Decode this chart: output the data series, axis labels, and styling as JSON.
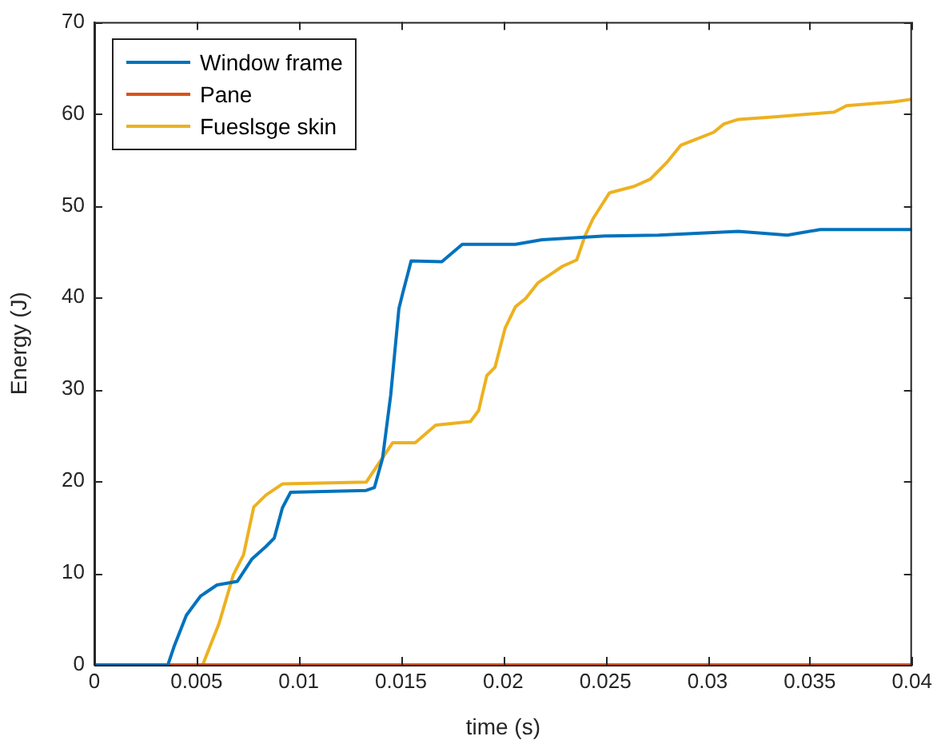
{
  "chart_data": {
    "type": "line",
    "xlabel": "time (s)",
    "ylabel": "Energy (J)",
    "xlim": [
      0,
      0.04
    ],
    "xticks": [
      0,
      0.005,
      0.01,
      0.015,
      0.02,
      0.025,
      0.03,
      0.035,
      0.04
    ],
    "ylim": [
      0,
      70
    ],
    "yticks": [
      0,
      10,
      20,
      30,
      40,
      50,
      60,
      70
    ],
    "grid": false,
    "legend": "top left",
    "marker": "none",
    "line_style": "solid",
    "series": [
      {
        "name": "Window frame",
        "color": "#0072bd",
        "x": [
          0,
          0.0036,
          0.0039,
          0.0045,
          0.0052,
          0.006,
          0.007,
          0.0077,
          0.0084,
          0.0088,
          0.0092,
          0.0096,
          0.0133,
          0.0137,
          0.0141,
          0.0145,
          0.0149,
          0.0151,
          0.0155,
          0.017,
          0.018,
          0.0206,
          0.0219,
          0.025,
          0.0276,
          0.0315,
          0.0339,
          0.0355,
          0.04
        ],
        "values": [
          0,
          0,
          2,
          5.4,
          7.5,
          8.7,
          9.1,
          11.5,
          12.9,
          13.8,
          17.1,
          18.8,
          19,
          19.3,
          22.5,
          29.4,
          38.8,
          40.6,
          44,
          43.9,
          45.8,
          45.8,
          46.3,
          46.7,
          46.8,
          47.2,
          46.8,
          47.4,
          47.4
        ]
      },
      {
        "name": "Pane",
        "color": "#d95319",
        "x": [
          0,
          0.04
        ],
        "values": [
          0,
          0
        ]
      },
      {
        "name": "Fueslsge skin",
        "color": "#edb120",
        "x": [
          0,
          0.0053,
          0.0061,
          0.0068,
          0.0073,
          0.0078,
          0.0084,
          0.0092,
          0.0133,
          0.0139,
          0.0146,
          0.0157,
          0.0167,
          0.0184,
          0.0188,
          0.0192,
          0.0196,
          0.0201,
          0.0206,
          0.0211,
          0.0217,
          0.0223,
          0.0229,
          0.0236,
          0.024,
          0.0244,
          0.0252,
          0.0264,
          0.0272,
          0.028,
          0.0287,
          0.0295,
          0.0303,
          0.0308,
          0.0315,
          0.0334,
          0.0362,
          0.0368,
          0.0391,
          0.04
        ],
        "values": [
          0,
          0,
          4.5,
          9.8,
          12,
          17.2,
          18.5,
          19.7,
          19.9,
          21.9,
          24.2,
          24.2,
          26.1,
          26.5,
          27.7,
          31.5,
          32.4,
          36.7,
          39,
          39.9,
          41.6,
          42.5,
          43.4,
          44.1,
          46.7,
          48.6,
          51.4,
          52.1,
          52.9,
          54.7,
          56.6,
          57.3,
          58,
          58.9,
          59.4,
          59.7,
          60.2,
          60.9,
          61.3,
          61.6
        ]
      }
    ]
  }
}
